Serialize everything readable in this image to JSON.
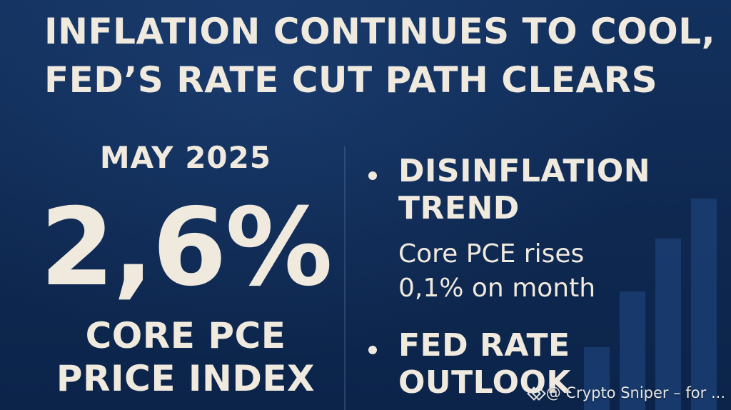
{
  "headline": {
    "line1": "INFLATION CONTINUES TO COOL,",
    "line2": "FED’S RATE CUT PATH CLEARS"
  },
  "left_panel": {
    "date": "MAY 2025",
    "value": "2,6%",
    "index_line1": "CORE PCE",
    "index_line2": "PRICE INDEX"
  },
  "bullets": [
    {
      "title_line1": "DISINFLATION",
      "title_line2": "TREND",
      "text_line1": "Core PCE rises",
      "text_line2": "0,1% on month"
    },
    {
      "title_line1": "FED RATE",
      "title_line2": "OUTLOOK"
    }
  ],
  "watermark": {
    "text": "@ Crypto Sniper – for ..."
  },
  "colors": {
    "background": "#0f2a52",
    "text": "#efe9de",
    "bars": "#1b3d72"
  }
}
